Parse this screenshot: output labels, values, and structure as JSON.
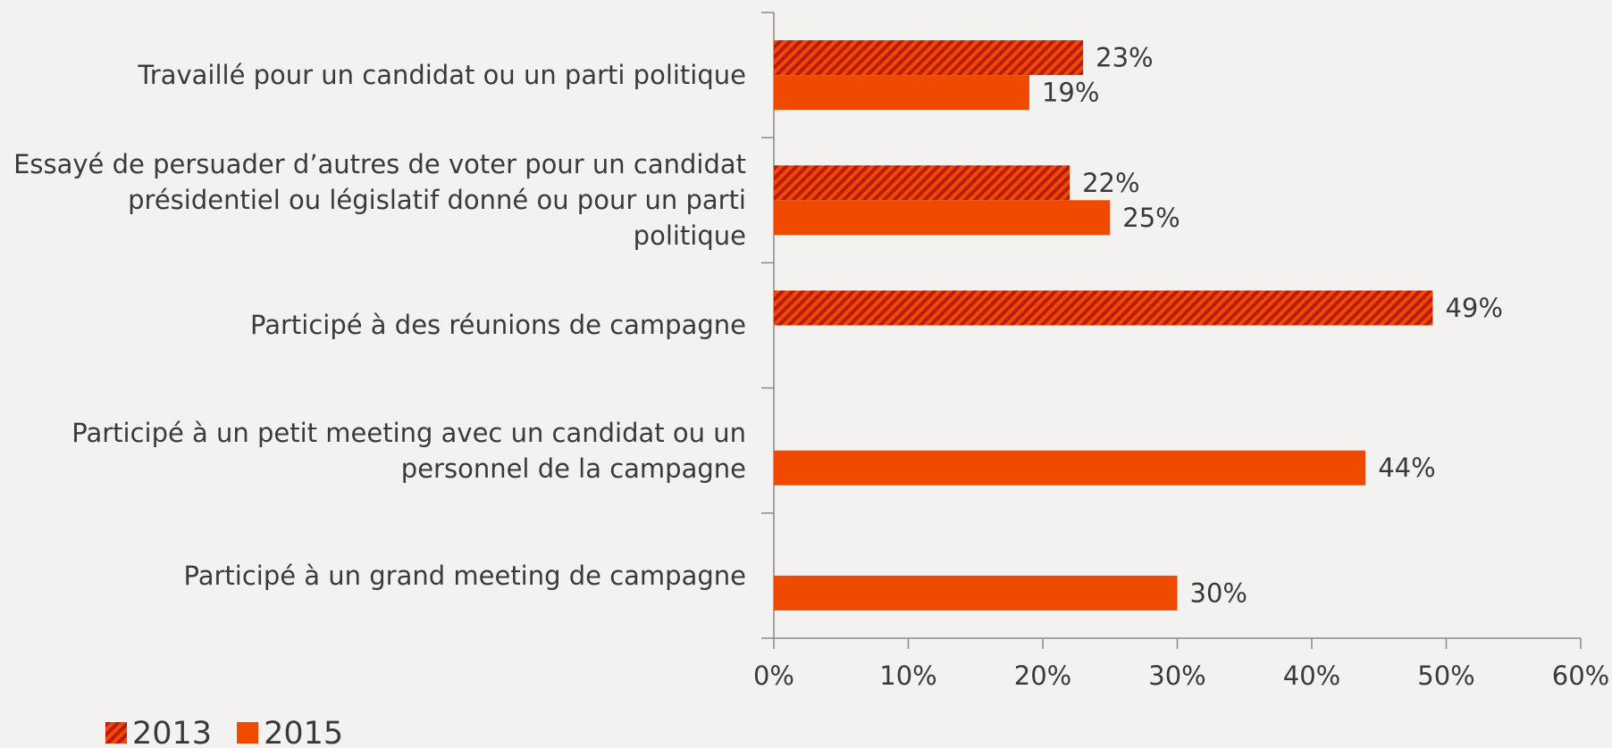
{
  "chart_data": {
    "type": "barh",
    "categories": [
      "Travaillé pour un candidat ou un parti politique",
      "Essayé de persuader d’autres de voter pour un candidat présidentiel ou législatif donné ou pour un parti politique",
      "Participé à des réunions de campagne",
      "Participé à un petit meeting avec un candidat ou un personnel de la campagne",
      "Participé à un grand meeting de campagne"
    ],
    "series": [
      {
        "name": "2013",
        "color": "#e2391b",
        "hatch": true,
        "values": [
          23,
          22,
          49,
          null,
          null
        ],
        "value_labels": [
          "23%",
          "22%",
          "49%",
          null,
          null
        ]
      },
      {
        "name": "2015",
        "color": "#f04a00",
        "hatch": false,
        "values": [
          19,
          25,
          null,
          44,
          30
        ],
        "value_labels": [
          "19%",
          "25%",
          null,
          "44%",
          "30%"
        ]
      }
    ],
    "xlim": [
      0,
      60
    ],
    "xticks": [
      {
        "value": 0,
        "label": "0%"
      },
      {
        "value": 10,
        "label": "10%"
      },
      {
        "value": 20,
        "label": "20%"
      },
      {
        "value": 30,
        "label": "30%"
      },
      {
        "value": 40,
        "label": "40%"
      },
      {
        "value": 50,
        "label": "50%"
      },
      {
        "value": 60,
        "label": "60%"
      }
    ],
    "legend": "bottom-left"
  }
}
